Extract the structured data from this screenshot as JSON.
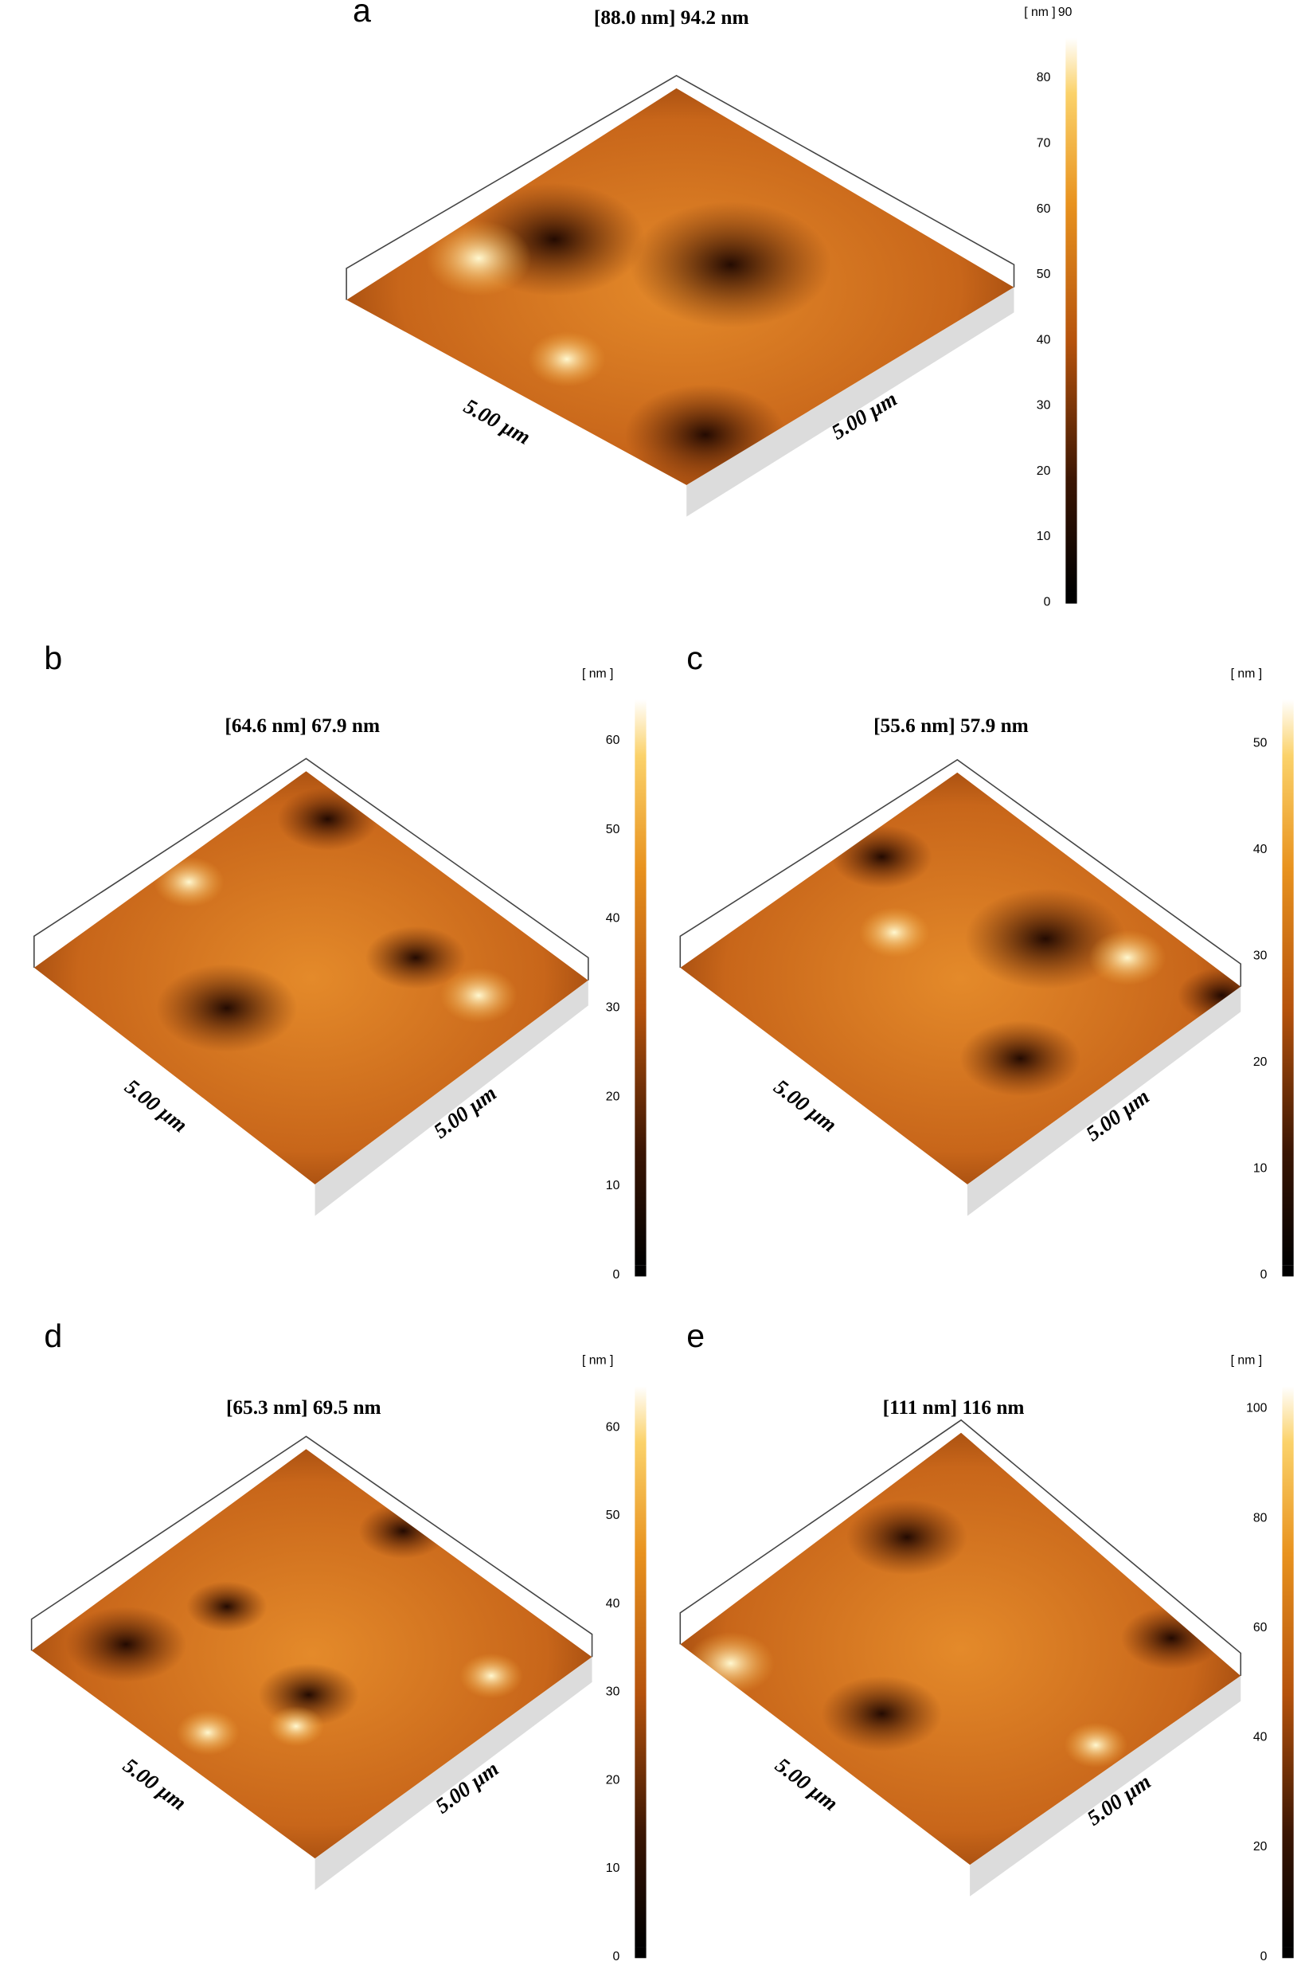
{
  "panels": [
    {
      "label": "a",
      "title": "[88.0 nm] 94.2 nm",
      "x_size": "5.00 µm",
      "y_size": "5.00 µm",
      "colorbar": {
        "unit": "[ nm ]",
        "ticks": [
          0,
          10,
          20,
          30,
          40,
          50,
          60,
          70,
          80,
          90
        ]
      }
    },
    {
      "label": "b",
      "title": "[64.6 nm] 67.9 nm",
      "x_size": "5.00 µm",
      "y_size": "5.00 µm",
      "colorbar": {
        "unit": "[ nm ]",
        "ticks": [
          0,
          10,
          20,
          30,
          40,
          50,
          60
        ]
      }
    },
    {
      "label": "c",
      "title": "[55.6 nm] 57.9 nm",
      "x_size": "5.00 µm",
      "y_size": "5.00 µm",
      "colorbar": {
        "unit": "[ nm ]",
        "ticks": [
          0,
          10,
          20,
          30,
          40,
          50
        ]
      }
    },
    {
      "label": "d",
      "title": "[65.3 nm] 69.5 nm",
      "x_size": "5.00 µm",
      "y_size": "5.00 µm",
      "colorbar": {
        "unit": "[ nm ]",
        "ticks": [
          0,
          10,
          20,
          30,
          40,
          50,
          60
        ]
      }
    },
    {
      "label": "e",
      "title": "[111 nm] 116 nm",
      "x_size": "5.00 µm",
      "y_size": "5.00 µm",
      "colorbar": {
        "unit": "[ nm ]",
        "ticks": [
          0,
          20,
          40,
          60,
          80,
          100
        ]
      }
    }
  ]
}
